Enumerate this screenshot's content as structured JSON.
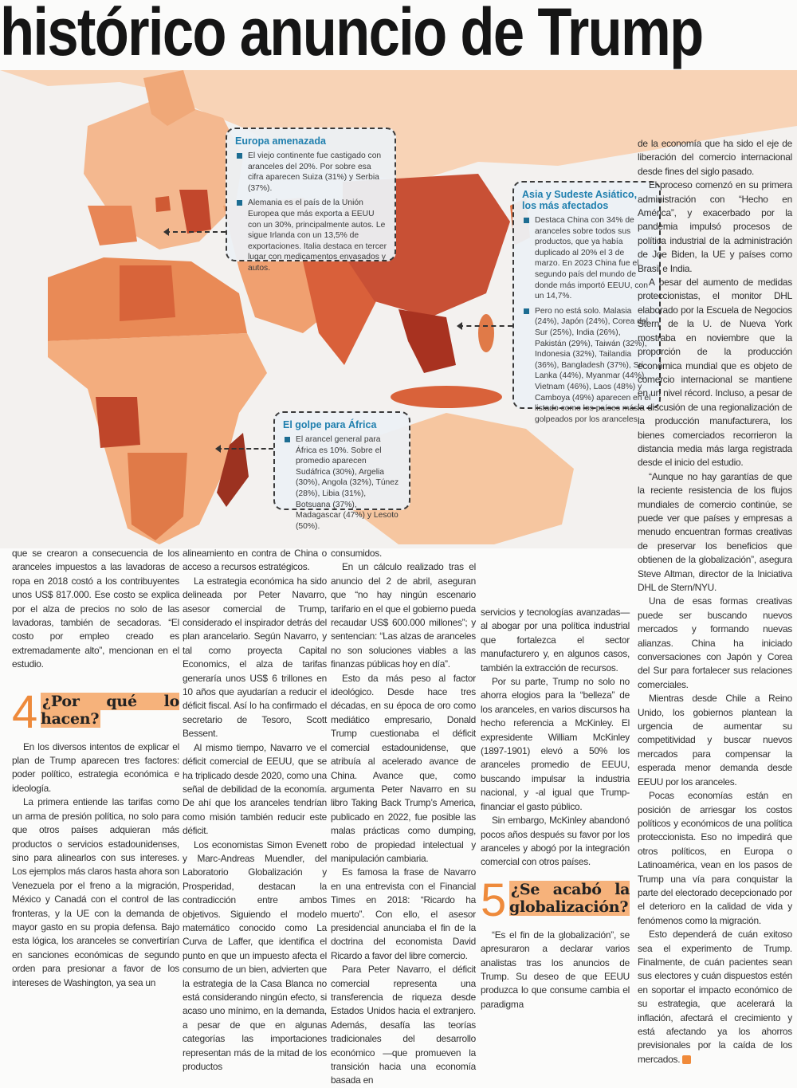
{
  "headline": "histórico anuncio de Trump",
  "colors": {
    "accent_orange": "#ee8a3b",
    "box_title_blue": "#1f7fae",
    "highlight": "#f6b27b"
  },
  "map_boxes": {
    "europe": {
      "title": "Europa amenazada",
      "bullets": [
        "El viejo continente fue castigado con aranceles del 20%. Por sobre esa cifra aparecen Suiza (31%) y Serbia (37%).",
        "Alemania es el país de la Unión Europea que más exporta a EEUU con un 30%, principalmente autos. Le sigue Irlanda con un 13,5% de exportaciones. Italia destaca en tercer lugar con medicamentos envasados y autos."
      ]
    },
    "asia": {
      "title": "Asia y Sudeste Asiático, los más afectados",
      "bullets": [
        "Destaca China con 34% de aranceles sobre todos sus productos, que ya había duplicado al 20% el 3 de marzo. En 2023 China fue el segundo país del mundo de donde más importó EEUU, con un 14,7%.",
        "Pero no está solo. Malasia (24%), Japón (24%), Corea del Sur (25%), India (26%), Pakistán (29%), Taiwán (32%), Indonesia (32%), Tailandia (36%), Bangladesh (37%), Sri Lanka (44%), Myanmar (44%), Vietnam (46%), Laos (48%) y Camboya (49%) aparecen en el listado como los países más golpeados por los aranceles."
      ]
    },
    "africa": {
      "title": "El golpe para África",
      "bullets": [
        "El arancel general para África es 10%. Sobre el promedio aparecen Sudáfrica (30%), Argelia (30%), Angola (32%), Túnez (28%), Libia (31%), Botsuana (37%), Madagascar (47%) y Lesoto (50%)."
      ]
    }
  },
  "sections": {
    "s4": {
      "number": "4",
      "title": "¿Por qué lo hacen?"
    },
    "s5": {
      "number": "5",
      "title": "¿Se acabó la globalización?"
    }
  },
  "columns": [
    {
      "p": [
        "que se crearon a consecuencia de los aranceles impuestos a las lavadoras de ropa en 2018 costó a los contribuyentes unos US$ 817.000. Ese costo se explica por el alza de precios no solo de las lavadoras, también de secadoras. “El costo por empleo creado es extremadamente alto”, mencionan en el estudio.",
        "En los diversos intentos de explicar el plan de Trump aparecen tres factores: poder político, estrategia económica e ideología.",
        "La primera entiende las tarifas como un arma de presión política, no solo para que otros países adquieran más productos o servicios estadounidenses, sino para alinearlos con sus intereses. Los ejemplos más claros hasta ahora son Venezuela por el freno a la migración, México y Canadá con el control de las fronteras, y la UE con la demanda de mayor gasto en su propia defensa. Bajo esta lógica, los aranceles se convertirían en sanciones económicas de segundo orden para presionar a favor de los intereses de Washington, ya sea un"
      ]
    },
    {
      "p": [
        "alineamiento en contra de China o acceso a recursos estratégicos.",
        "La estrategia económica ha sido delineada por Peter Navarro, asesor comercial de Trump, considerado el inspirador detrás del plan arancelario. Según Navarro, y tal como proyecta Capital Economics, el alza de tarifas generaría unos US$ 6 trillones en 10 años que ayudarían a reducir el déficit fiscal. Así lo ha confirmado el secretario de Tesoro, Scott Bessent.",
        "Al mismo tiempo, Navarro ve el déficit comercial de EEUU, que se ha triplicado desde 2020, como una señal de debilidad de la economía. De ahí que los aranceles tendrían como misión también reducir este déficit.",
        "Los economistas Simon Evenett y Marc-Andreas Muendler, del Laboratorio Globalización y Prosperidad, destacan la contradicción entre ambos objetivos. Siguiendo el modelo matemático conocido como La Curva de Laffer, que identifica el punto en que un impuesto afecta el consumo de un bien, advierten que la estrategia de la Casa Blanca no está considerando ningún efecto, si acaso uno mínimo, en la demanda, a pesar de que en algunas categorías las importaciones representan más de la mitad de los productos"
      ]
    },
    {
      "p": [
        "consumidos.",
        "En un cálculo realizado tras el anuncio del 2 de abril, aseguran que “no hay ningún escenario tarifario en el que el gobierno pueda recaudar US$ 600.000 millones”; y sentencian: “Las alzas de aranceles no son soluciones viables a las finanzas públicas hoy en día”.",
        "Esto da más peso al factor ideológico. Desde hace tres décadas, en su época de oro como mediático empresario, Donald Trump cuestionaba el déficit comercial estadounidense, que atribuía al acelerado avance de China. Avance que, como argumenta Peter Navarro en su libro Taking Back Trump’s America, publicado en 2022, fue posible las malas prácticas como dumping, robo de propiedad intelectual y manipulación cambiaria.",
        "Es famosa la frase de Navarro en una entrevista con el Financial Times en 2018: “Ricardo ha muerto”. Con ello, el asesor presidencial anunciaba el fin de la doctrina del economista David Ricardo a favor del libre comercio.",
        "Para Peter Navarro, el déficit comercial representa una transferencia de riqueza desde Estados Unidos hacia el extranjero. Además, desafía las teorías tradicionales del desarrollo económico —que promueven la transición hacia una economía basada en"
      ]
    },
    {
      "p": [
        "servicios y tecnologías avanzadas— al abogar por una política industrial que fortalezca el sector manufacturero y, en algunos casos, también la extracción de recursos.",
        "Por su parte, Trump no solo no ahorra elogios para la “belleza” de los aranceles, en varios discursos ha hecho referencia a McKinley. El expresidente William McKinley (1897-1901) elevó a 50% los aranceles promedio de EEUU, buscando impulsar la industria nacional, y -al igual que Trump- financiar el gasto público.",
        "Sin embargo, McKinley abandonó pocos años después su favor por los aranceles y abogó por la integración comercial con otros países.",
        "“Es el fin de la globalización”, se apresuraron a declarar varios analistas tras los anuncios de Trump. Su deseo de que EEUU produzca lo que consume cambia el paradigma"
      ]
    },
    {
      "p": [
        "de la economía que ha sido el eje de liberación del comercio internacional desde fines del siglo pasado.",
        "El proceso comenzó en su primera administración con “Hecho en América”, y exacerbado por la pandemia impulsó procesos de política industrial de la administración de Joe Biden, la UE y países como Brasil e India.",
        "A pesar del aumento de medidas proteccionistas, el monitor DHL elaborado por la Escuela de Negocios Stern de la U. de Nueva York mostraba en noviembre que la proporción de la producción económica mundial que es objeto de comercio internacional se mantiene en un nivel récord. Incluso, a pesar de la discusión de una regionalización de la producción manufacturera, los bienes comerciados recorrieron la distancia media más larga registrada desde el inicio del estudio.",
        "“Aunque no hay garantías de que la reciente resistencia de los flujos mundiales de comercio continúe, se puede ver que países y empresas a menudo encuentran formas creativas de preservar los beneficios que obtienen de la globalización”, asegura Steve Altman, director de la Iniciativa DHL de Stern/NYU.",
        "Una de esas formas creativas puede ser buscando nuevos mercados y formando nuevas alianzas. China ha iniciado conversaciones con Japón y Corea del Sur para fortalecer sus relaciones comerciales.",
        "Mientras desde Chile a Reino Unido, los gobiernos plantean la urgencia de aumentar su competitividad y buscar nuevos mercados para compensar la esperada menor demanda desde EEUU por los aranceles.",
        "Pocas economías están en posición de arriesgar los costos políticos y económicos de una política proteccionista. Eso no impedirá que otros políticos, en Europa o Latinoamérica, vean en los pasos de Trump una vía para conquistar la parte del electorado decepcionado por el deterioro en la calidad de vida y fenómenos como la migración.",
        "Esto dependerá de cuán exitoso sea el experimento de Trump. Finalmente, de cuán pacientes sean sus electores y cuán dispuestos estén en soportar el impacto económico de su estrategia, que acelerará la inflación, afectará el crecimiento y está afectando ya los ahorros previsionales por la caída de los mercados."
      ]
    }
  ]
}
